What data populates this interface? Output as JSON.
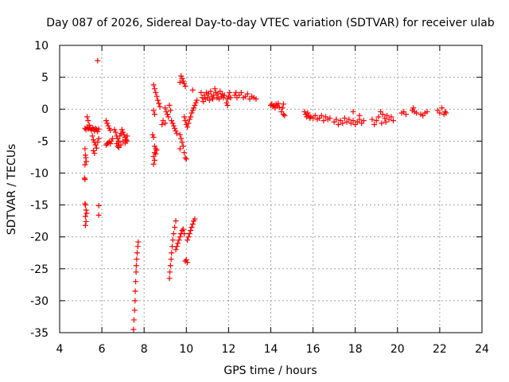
{
  "chart_data": {
    "type": "scatter",
    "title": "Day 087 of 2026, Sidereal Day-to-day VTEC variation (SDTVAR) for receiver ulab",
    "xlabel": "GPS time / hours",
    "ylabel": "SDTVAR / TECUs",
    "xlim": [
      4,
      24
    ],
    "ylim": [
      -35,
      10
    ],
    "xticks": [
      4,
      6,
      8,
      10,
      12,
      14,
      16,
      18,
      20,
      22,
      24
    ],
    "yticks": [
      10,
      5,
      0,
      -5,
      -10,
      -15,
      -20,
      -25,
      -30,
      -35
    ],
    "grid": true,
    "marker": "+",
    "color": "#ff0000",
    "series": [
      {
        "name": "SDTVAR",
        "points": [
          [
            5.8,
            7.6
          ],
          [
            5.2,
            -3.0
          ],
          [
            5.25,
            -3.2
          ],
          [
            5.3,
            -2.8
          ],
          [
            5.35,
            -3.1
          ],
          [
            5.4,
            -2.9
          ],
          [
            5.45,
            -3.0
          ],
          [
            5.5,
            -3.3
          ],
          [
            5.55,
            -2.9
          ],
          [
            5.6,
            -3.1
          ],
          [
            5.65,
            -3.4
          ],
          [
            5.7,
            -3.0
          ],
          [
            5.75,
            -3.2
          ],
          [
            5.8,
            -3.5
          ],
          [
            5.85,
            -3.1
          ],
          [
            5.3,
            -1.2
          ],
          [
            5.35,
            -1.8
          ],
          [
            5.4,
            -2.5
          ],
          [
            5.2,
            -6.2
          ],
          [
            5.22,
            -7.2
          ],
          [
            5.24,
            -7.6
          ],
          [
            5.26,
            -8.2
          ],
          [
            5.2,
            -8.7
          ],
          [
            5.18,
            -10.8
          ],
          [
            5.2,
            -11.0
          ],
          [
            5.2,
            -14.8
          ],
          [
            5.22,
            -15.0
          ],
          [
            5.25,
            -15.8
          ],
          [
            5.28,
            -16.3
          ],
          [
            5.22,
            -16.8
          ],
          [
            5.25,
            -17.6
          ],
          [
            5.22,
            -18.2
          ],
          [
            5.85,
            -15.1
          ],
          [
            5.85,
            -16.6
          ],
          [
            5.55,
            -4.2
          ],
          [
            5.6,
            -4.8
          ],
          [
            5.65,
            -5.2
          ],
          [
            5.7,
            -5.6
          ],
          [
            5.75,
            -6.1
          ],
          [
            5.8,
            -5.2
          ],
          [
            5.85,
            -4.6
          ],
          [
            5.6,
            -6.5
          ],
          [
            5.65,
            -6.9
          ],
          [
            6.2,
            -1.8
          ],
          [
            6.25,
            -2.2
          ],
          [
            6.3,
            -2.6
          ],
          [
            6.35,
            -3.0
          ],
          [
            6.4,
            -3.3
          ],
          [
            6.2,
            -5.6
          ],
          [
            6.25,
            -5.4
          ],
          [
            6.3,
            -5.3
          ],
          [
            6.35,
            -5.1
          ],
          [
            6.4,
            -5.4
          ],
          [
            6.45,
            -5.0
          ],
          [
            6.5,
            -4.6
          ],
          [
            6.6,
            -3.2
          ],
          [
            6.65,
            -3.6
          ],
          [
            6.7,
            -4.2
          ],
          [
            6.75,
            -4.6
          ],
          [
            6.8,
            -5.0
          ],
          [
            6.85,
            -4.2
          ],
          [
            6.9,
            -3.8
          ],
          [
            6.95,
            -3.2
          ],
          [
            7.0,
            -3.6
          ],
          [
            7.05,
            -4.0
          ],
          [
            7.1,
            -4.4
          ],
          [
            7.15,
            -4.8
          ],
          [
            7.2,
            -4.2
          ],
          [
            6.7,
            -5.4
          ],
          [
            6.75,
            -5.8
          ],
          [
            6.8,
            -5.2
          ],
          [
            6.9,
            -5.6
          ],
          [
            7.0,
            -5.0
          ],
          [
            7.1,
            -5.3
          ],
          [
            7.2,
            -5.0
          ],
          [
            6.8,
            -6.0
          ],
          [
            7.5,
            -34.5
          ],
          [
            7.52,
            -33.0
          ],
          [
            7.55,
            -31.5
          ],
          [
            7.57,
            -30.0
          ],
          [
            7.58,
            -28.5
          ],
          [
            7.6,
            -27.0
          ],
          [
            7.62,
            -25.5
          ],
          [
            7.63,
            -24.5
          ],
          [
            7.65,
            -23.5
          ],
          [
            7.67,
            -22.5
          ],
          [
            7.7,
            -21.5
          ],
          [
            7.72,
            -20.8
          ],
          [
            8.45,
            3.8
          ],
          [
            8.5,
            3.2
          ],
          [
            8.55,
            2.6
          ],
          [
            8.6,
            2.0
          ],
          [
            8.65,
            1.4
          ],
          [
            8.7,
            0.9
          ],
          [
            8.75,
            0.4
          ],
          [
            8.45,
            -0.2
          ],
          [
            8.5,
            -0.8
          ],
          [
            8.4,
            -4.0
          ],
          [
            8.45,
            -4.4
          ],
          [
            8.5,
            -5.8
          ],
          [
            8.55,
            -6.2
          ],
          [
            8.5,
            -6.8
          ],
          [
            8.45,
            -7.4
          ],
          [
            8.5,
            -8.0
          ],
          [
            8.45,
            -8.6
          ],
          [
            8.55,
            -7.0
          ],
          [
            8.6,
            -6.4
          ],
          [
            9.0,
            0.2
          ],
          [
            9.05,
            -0.4
          ],
          [
            9.1,
            -0.8
          ],
          [
            9.15,
            -1.2
          ],
          [
            9.2,
            0.6
          ],
          [
            9.25,
            -0.2
          ],
          [
            8.9,
            -1.8
          ],
          [
            9.0,
            -2.2
          ],
          [
            8.85,
            -2.4
          ],
          [
            9.3,
            -1.8
          ],
          [
            9.35,
            -2.2
          ],
          [
            9.4,
            -2.6
          ],
          [
            9.45,
            -3.0
          ],
          [
            9.5,
            -3.4
          ],
          [
            9.55,
            -3.8
          ],
          [
            9.75,
            5.2
          ],
          [
            9.8,
            4.8
          ],
          [
            9.85,
            4.4
          ],
          [
            9.9,
            4.0
          ],
          [
            9.95,
            3.6
          ],
          [
            9.7,
            4.2
          ],
          [
            9.7,
            -4.0
          ],
          [
            9.75,
            -4.6
          ],
          [
            9.8,
            -5.2
          ],
          [
            9.85,
            -5.8
          ],
          [
            9.7,
            -6.2
          ],
          [
            9.9,
            -6.8
          ],
          [
            9.95,
            -7.6
          ],
          [
            10.0,
            -7.8
          ],
          [
            9.9,
            -1.2
          ],
          [
            9.95,
            -1.8
          ],
          [
            10.0,
            -2.4
          ],
          [
            10.05,
            -2.8
          ],
          [
            10.1,
            -2.2
          ],
          [
            10.15,
            -1.6
          ],
          [
            10.2,
            -1.2
          ],
          [
            10.25,
            -0.6
          ],
          [
            10.3,
            -0.2
          ],
          [
            10.35,
            0.2
          ],
          [
            10.4,
            0.6
          ],
          [
            10.45,
            1.0
          ],
          [
            10.5,
            1.4
          ],
          [
            9.2,
            -26.5
          ],
          [
            9.22,
            -25.5
          ],
          [
            9.25,
            -24.5
          ],
          [
            9.28,
            -23.5
          ],
          [
            9.3,
            -22.5
          ],
          [
            9.33,
            -21.5
          ],
          [
            9.36,
            -20.5
          ],
          [
            9.4,
            -19.5
          ],
          [
            9.45,
            -18.5
          ],
          [
            9.5,
            -17.5
          ],
          [
            9.5,
            -22.0
          ],
          [
            9.55,
            -21.5
          ],
          [
            9.6,
            -21.0
          ],
          [
            9.65,
            -20.5
          ],
          [
            9.7,
            -20.0
          ],
          [
            9.75,
            -19.5
          ],
          [
            9.8,
            -19.0
          ],
          [
            9.85,
            -18.8
          ],
          [
            9.9,
            -19.5
          ],
          [
            10.05,
            -20.5
          ],
          [
            10.1,
            -20.0
          ],
          [
            10.15,
            -19.5
          ],
          [
            10.2,
            -19.0
          ],
          [
            10.25,
            -18.5
          ],
          [
            10.3,
            -18.0
          ],
          [
            10.35,
            -17.5
          ],
          [
            10.4,
            -17.2
          ],
          [
            10.0,
            -23.6
          ],
          [
            10.05,
            -24.0
          ],
          [
            9.95,
            -23.8
          ],
          [
            10.3,
            3.0
          ],
          [
            10.7,
            2.6
          ],
          [
            10.75,
            1.8
          ],
          [
            10.8,
            1.2
          ],
          [
            10.85,
            2.2
          ],
          [
            10.9,
            1.6
          ],
          [
            10.95,
            2.6
          ],
          [
            11.0,
            1.8
          ],
          [
            11.05,
            2.4
          ],
          [
            11.1,
            1.4
          ],
          [
            11.15,
            2.8
          ],
          [
            11.2,
            2.0
          ],
          [
            11.25,
            1.6
          ],
          [
            11.3,
            2.2
          ],
          [
            11.35,
            3.2
          ],
          [
            11.4,
            2.6
          ],
          [
            11.45,
            1.8
          ],
          [
            11.5,
            2.4
          ],
          [
            11.55,
            1.6
          ],
          [
            11.6,
            2.8
          ],
          [
            11.65,
            2.0
          ],
          [
            11.7,
            2.4
          ],
          [
            11.75,
            1.8
          ],
          [
            11.8,
            2.2
          ],
          [
            11.9,
            1.0
          ],
          [
            11.95,
            1.6
          ],
          [
            12.0,
            2.0
          ],
          [
            12.05,
            2.6
          ],
          [
            12.1,
            1.8
          ],
          [
            11.95,
            0.6
          ],
          [
            12.3,
            2.2
          ],
          [
            12.35,
            2.6
          ],
          [
            12.4,
            1.8
          ],
          [
            12.5,
            2.2
          ],
          [
            12.6,
            2.6
          ],
          [
            12.7,
            1.8
          ],
          [
            12.8,
            2.0
          ],
          [
            12.9,
            2.4
          ],
          [
            13.0,
            1.6
          ],
          [
            13.1,
            2.0
          ],
          [
            13.2,
            1.8
          ],
          [
            13.3,
            1.6
          ],
          [
            14.0,
            0.6
          ],
          [
            14.05,
            0.8
          ],
          [
            14.1,
            0.4
          ],
          [
            14.15,
            0.6
          ],
          [
            14.2,
            0.2
          ],
          [
            14.25,
            0.8
          ],
          [
            14.3,
            0.5
          ],
          [
            14.35,
            0.9
          ],
          [
            14.4,
            0.3
          ],
          [
            14.5,
            -0.4
          ],
          [
            14.6,
            -0.8
          ],
          [
            14.65,
            -1.0
          ],
          [
            14.55,
            0.2
          ],
          [
            14.6,
            0.8
          ],
          [
            15.6,
            -0.4
          ],
          [
            15.65,
            -0.8
          ],
          [
            15.7,
            -1.2
          ],
          [
            15.75,
            -0.6
          ],
          [
            15.8,
            -1.0
          ],
          [
            15.85,
            -1.4
          ],
          [
            15.9,
            -1.2
          ],
          [
            16.0,
            -1.4
          ],
          [
            16.1,
            -1.0
          ],
          [
            16.2,
            -1.6
          ],
          [
            16.3,
            -1.4
          ],
          [
            16.4,
            -1.0
          ],
          [
            16.5,
            -1.8
          ],
          [
            16.6,
            -1.2
          ],
          [
            16.7,
            -1.6
          ],
          [
            16.8,
            -1.4
          ],
          [
            17.0,
            -2.0
          ],
          [
            17.1,
            -1.6
          ],
          [
            17.2,
            -2.4
          ],
          [
            17.3,
            -1.8
          ],
          [
            17.4,
            -2.2
          ],
          [
            17.5,
            -1.4
          ],
          [
            17.6,
            -2.0
          ],
          [
            17.7,
            -1.6
          ],
          [
            17.8,
            -2.2
          ],
          [
            17.9,
            -1.8
          ],
          [
            18.0,
            -2.4
          ],
          [
            18.1,
            -2.0
          ],
          [
            18.2,
            -1.6
          ],
          [
            18.3,
            -2.2
          ],
          [
            18.4,
            -1.8
          ],
          [
            17.9,
            -0.4
          ],
          [
            18.2,
            -1.0
          ],
          [
            18.8,
            -1.6
          ],
          [
            18.9,
            -2.4
          ],
          [
            19.0,
            -1.8
          ],
          [
            19.1,
            -1.2
          ],
          [
            19.2,
            -0.4
          ],
          [
            19.3,
            -0.8
          ],
          [
            19.4,
            -1.4
          ],
          [
            19.5,
            -1.0
          ],
          [
            19.6,
            -1.6
          ],
          [
            19.7,
            -1.2
          ],
          [
            19.8,
            -1.8
          ],
          [
            19.25,
            -2.2
          ],
          [
            19.45,
            -2.0
          ],
          [
            20.2,
            -0.6
          ],
          [
            20.3,
            -0.4
          ],
          [
            20.4,
            -0.8
          ],
          [
            20.7,
            -0.2
          ],
          [
            20.75,
            0.2
          ],
          [
            20.8,
            -0.4
          ],
          [
            20.9,
            -0.6
          ],
          [
            21.1,
            -0.8
          ],
          [
            21.2,
            -1.0
          ],
          [
            21.3,
            -0.6
          ],
          [
            21.4,
            -0.4
          ],
          [
            21.9,
            -0.2
          ],
          [
            22.0,
            -0.6
          ],
          [
            22.1,
            0.2
          ],
          [
            22.2,
            -0.8
          ],
          [
            22.25,
            -0.4
          ],
          [
            22.3,
            -0.6
          ]
        ]
      }
    ]
  }
}
